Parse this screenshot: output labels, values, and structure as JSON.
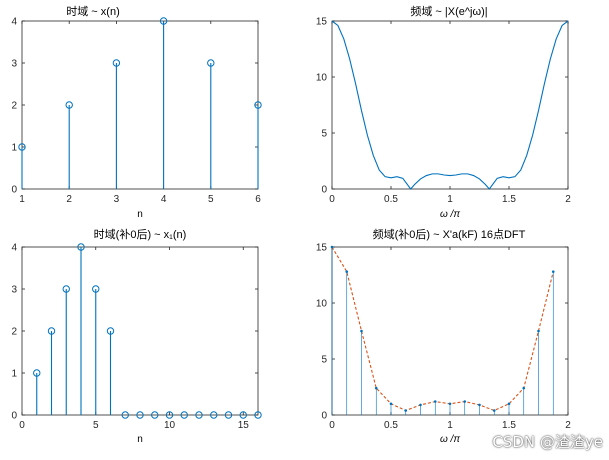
{
  "watermark": "CSDN @渣渣ye",
  "colors": {
    "axis": "#262626",
    "stem": "#0072BD",
    "curve": "#0072BD",
    "dashed": "#D95319",
    "background": "#ffffff"
  },
  "chart_data": [
    {
      "type": "stem",
      "title": "时域 ~ x(n)",
      "xlabel": "n",
      "ylabel": "",
      "xlim": [
        1,
        6
      ],
      "ylim": [
        0,
        4
      ],
      "xticks": [
        1,
        2,
        3,
        4,
        5,
        6
      ],
      "yticks": [
        0,
        1,
        2,
        3,
        4
      ],
      "x": [
        1,
        2,
        3,
        4,
        5,
        6
      ],
      "values": [
        1,
        2,
        3,
        4,
        3,
        2
      ],
      "grid": false
    },
    {
      "type": "line",
      "title": "频域 ~ |X(e^jω)|",
      "xlabel": "ω /π",
      "ylabel": "",
      "xlim": [
        0,
        2
      ],
      "ylim": [
        0,
        15
      ],
      "xticks": [
        0,
        0.5,
        1,
        1.5,
        2
      ],
      "yticks": [
        0,
        5,
        10,
        15
      ],
      "x": [
        0,
        0.05,
        0.1,
        0.15,
        0.2,
        0.25,
        0.3,
        0.35,
        0.4,
        0.45,
        0.5,
        0.55,
        0.6,
        0.6667,
        0.7,
        0.75,
        0.8,
        0.85,
        0.9,
        0.95,
        1,
        1.05,
        1.1,
        1.15,
        1.2,
        1.25,
        1.3,
        1.3333,
        1.4,
        1.45,
        1.5,
        1.55,
        1.6,
        1.65,
        1.7,
        1.75,
        1.8,
        1.85,
        1.9,
        1.95,
        2
      ],
      "values": [
        15,
        14.6,
        13.4,
        11.6,
        9.4,
        7.0,
        4.8,
        3.0,
        1.7,
        1.1,
        1.0,
        1.1,
        0.95,
        0,
        0.4,
        0.9,
        1.2,
        1.35,
        1.35,
        1.25,
        1.2,
        1.25,
        1.35,
        1.35,
        1.2,
        0.9,
        0.4,
        0,
        0.95,
        1.1,
        1.0,
        1.1,
        1.7,
        3.0,
        4.8,
        7.0,
        9.4,
        11.6,
        13.4,
        14.6,
        15
      ],
      "grid": false
    },
    {
      "type": "stem",
      "title": "时域(补0后) ~ x₁(n)",
      "xlabel": "n",
      "ylabel": "",
      "xlim": [
        0,
        16
      ],
      "ylim": [
        0,
        4
      ],
      "xticks": [
        0,
        5,
        10,
        15
      ],
      "yticks": [
        0,
        1,
        2,
        3,
        4
      ],
      "x": [
        1,
        2,
        3,
        4,
        5,
        6,
        7,
        8,
        9,
        10,
        11,
        12,
        13,
        14,
        15,
        16
      ],
      "values": [
        1,
        2,
        3,
        4,
        3,
        2,
        0,
        0,
        0,
        0,
        0,
        0,
        0,
        0,
        0,
        0
      ],
      "grid": false
    },
    {
      "type": "stem+line",
      "title": "频域(补0后) ~ X'a(kF) 16点DFT",
      "xlabel": "ω /π",
      "ylabel": "",
      "xlim": [
        0,
        2
      ],
      "ylim": [
        0,
        15
      ],
      "xticks": [
        0,
        0.5,
        1,
        1.5,
        2
      ],
      "yticks": [
        0,
        5,
        10,
        15
      ],
      "x": [
        0,
        0.125,
        0.25,
        0.375,
        0.5,
        0.625,
        0.75,
        0.875,
        1.0,
        1.125,
        1.25,
        1.375,
        1.5,
        1.625,
        1.75,
        1.875
      ],
      "values": [
        15,
        12.8,
        7.5,
        2.4,
        1.0,
        0.4,
        0.9,
        1.2,
        1.0,
        1.2,
        0.9,
        0.4,
        1.0,
        2.4,
        7.5,
        12.8
      ],
      "grid": false
    }
  ]
}
